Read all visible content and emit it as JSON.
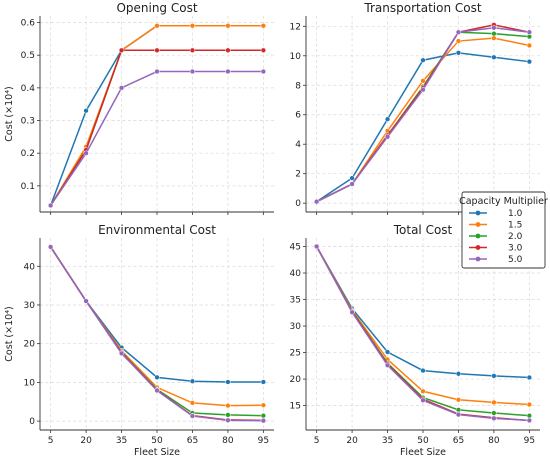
{
  "figure": {
    "width": 550,
    "height": 460
  },
  "chart_data": [
    {
      "type": "line",
      "title": "Opening Cost",
      "xlabel": "",
      "ylabel": "Cost (×10⁴)",
      "x": [
        5,
        20,
        35,
        50,
        65,
        80,
        95
      ],
      "ylim": [
        0.02,
        0.62
      ],
      "yticks": [
        0.1,
        0.2,
        0.3,
        0.4,
        0.5,
        0.6
      ],
      "ytick_labels": [
        "0.1",
        "0.2",
        "0.3",
        "0.4",
        "0.5",
        "0.6"
      ],
      "show_xtick_labels": false,
      "grid": true,
      "series": [
        {
          "name": "1.0",
          "color": "#1f77b4",
          "values": [
            0.04,
            0.33,
            0.515,
            0.59,
            0.59,
            0.59,
            0.59
          ]
        },
        {
          "name": "1.5",
          "color": "#ff7f0e",
          "values": [
            0.04,
            0.22,
            0.515,
            0.59,
            0.59,
            0.59,
            0.59
          ]
        },
        {
          "name": "2.0",
          "color": "#2ca02c",
          "values": [
            0.04,
            0.21,
            0.515,
            0.515,
            0.515,
            0.515,
            0.515
          ]
        },
        {
          "name": "3.0",
          "color": "#d62728",
          "values": [
            0.04,
            0.21,
            0.515,
            0.515,
            0.515,
            0.515,
            0.515
          ]
        },
        {
          "name": "5.0",
          "color": "#9467bd",
          "values": [
            0.04,
            0.2,
            0.4,
            0.45,
            0.45,
            0.45,
            0.45
          ]
        }
      ]
    },
    {
      "type": "line",
      "title": "Transportation Cost",
      "xlabel": "",
      "ylabel": "",
      "x": [
        5,
        20,
        35,
        50,
        65,
        80,
        95
      ],
      "ylim": [
        -0.6,
        12.7
      ],
      "yticks": [
        0,
        2,
        4,
        6,
        8,
        10,
        12
      ],
      "ytick_labels": [
        "0",
        "2",
        "4",
        "6",
        "8",
        "10",
        "12"
      ],
      "show_xtick_labels": false,
      "grid": true,
      "series": [
        {
          "name": "1.0",
          "color": "#1f77b4",
          "values": [
            0.1,
            1.7,
            5.7,
            9.7,
            10.2,
            9.9,
            9.6
          ]
        },
        {
          "name": "1.5",
          "color": "#ff7f0e",
          "values": [
            0.1,
            1.3,
            4.9,
            8.3,
            11.0,
            11.2,
            10.7
          ]
        },
        {
          "name": "2.0",
          "color": "#2ca02c",
          "values": [
            0.1,
            1.3,
            4.6,
            7.9,
            11.6,
            11.5,
            11.3
          ]
        },
        {
          "name": "3.0",
          "color": "#d62728",
          "values": [
            0.1,
            1.3,
            4.6,
            7.8,
            11.6,
            12.1,
            11.6
          ]
        },
        {
          "name": "5.0",
          "color": "#9467bd",
          "values": [
            0.1,
            1.3,
            4.5,
            7.7,
            11.6,
            11.9,
            11.6
          ]
        }
      ]
    },
    {
      "type": "line",
      "title": "Environmental Cost",
      "xlabel": "Fleet Size",
      "ylabel": "Cost (×10⁴)",
      "x": [
        5,
        20,
        35,
        50,
        65,
        80,
        95
      ],
      "ylim": [
        -2.3,
        47.3
      ],
      "yticks": [
        0,
        10,
        20,
        30,
        40
      ],
      "ytick_labels": [
        "0",
        "10",
        "20",
        "30",
        "40"
      ],
      "show_xtick_labels": true,
      "grid": true,
      "series": [
        {
          "name": "1.0",
          "color": "#1f77b4",
          "values": [
            45,
            31,
            19,
            11.3,
            10.3,
            10.1,
            10.1
          ]
        },
        {
          "name": "1.5",
          "color": "#ff7f0e",
          "values": [
            45,
            31,
            18.2,
            8.7,
            4.7,
            4.0,
            4.1
          ]
        },
        {
          "name": "2.0",
          "color": "#2ca02c",
          "values": [
            45,
            31,
            17.8,
            8.2,
            2.1,
            1.6,
            1.4
          ]
        },
        {
          "name": "3.0",
          "color": "#d62728",
          "values": [
            45,
            31,
            17.7,
            8.0,
            1.4,
            0.3,
            0.2
          ]
        },
        {
          "name": "5.0",
          "color": "#9467bd",
          "values": [
            45,
            31,
            17.5,
            7.9,
            1.3,
            0.2,
            0.1
          ]
        }
      ]
    },
    {
      "type": "line",
      "title": "Total Cost",
      "xlabel": "Fleet Size",
      "ylabel": "",
      "x": [
        5,
        20,
        35,
        50,
        65,
        80,
        95
      ],
      "ylim": [
        10.4,
        46.6
      ],
      "yticks": [
        15,
        20,
        25,
        30,
        35,
        40,
        45
      ],
      "ytick_labels": [
        "15",
        "20",
        "25",
        "30",
        "35",
        "40",
        "45"
      ],
      "show_xtick_labels": true,
      "grid": true,
      "series": [
        {
          "name": "1.0",
          "color": "#1f77b4",
          "values": [
            45,
            33.3,
            25.1,
            21.6,
            21.0,
            20.6,
            20.3
          ]
        },
        {
          "name": "1.5",
          "color": "#ff7f0e",
          "values": [
            45,
            33.0,
            23.7,
            17.7,
            16.1,
            15.6,
            15.2
          ]
        },
        {
          "name": "2.0",
          "color": "#2ca02c",
          "values": [
            45,
            32.8,
            23.0,
            16.5,
            14.2,
            13.6,
            13.1
          ]
        },
        {
          "name": "3.0",
          "color": "#d62728",
          "values": [
            45,
            32.7,
            22.8,
            16.2,
            13.4,
            12.7,
            12.2
          ]
        },
        {
          "name": "5.0",
          "color": "#9467bd",
          "values": [
            45,
            32.6,
            22.6,
            16.0,
            13.3,
            12.6,
            12.2
          ]
        }
      ]
    }
  ],
  "legend": {
    "title": "Capacity Multiplier",
    "placement": "right, between top-right and bottom-right panels",
    "entries": [
      {
        "label": "1.0",
        "color": "#1f77b4"
      },
      {
        "label": "1.5",
        "color": "#ff7f0e"
      },
      {
        "label": "2.0",
        "color": "#2ca02c"
      },
      {
        "label": "3.0",
        "color": "#d62728"
      },
      {
        "label": "5.0",
        "color": "#9467bd"
      }
    ]
  }
}
